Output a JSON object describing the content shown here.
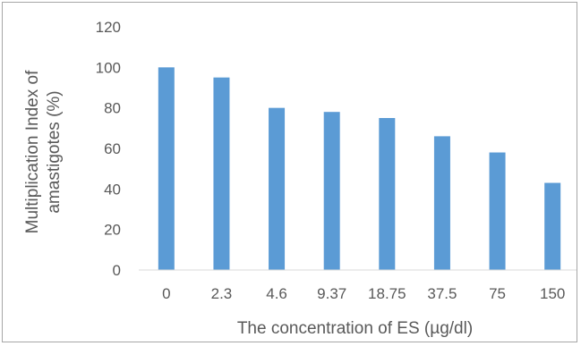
{
  "chart_data": {
    "type": "bar",
    "categories": [
      "0",
      "2.3",
      "4.6",
      "9.37",
      "18.75",
      "37.5",
      "75",
      "150"
    ],
    "values": [
      100,
      95,
      80,
      78,
      75,
      66,
      58,
      43
    ],
    "title": "",
    "xlabel": "The concentration of ES (µg/dl)",
    "ylabel_line1": "Multiplication Index of",
    "ylabel_line2": "amastigotes (%)",
    "ylim": [
      0,
      120
    ],
    "yticks": [
      "0",
      "20",
      "40",
      "60",
      "80",
      "100",
      "120"
    ],
    "grid": false,
    "legend": "none",
    "bar_color": "#5b9bd5"
  }
}
